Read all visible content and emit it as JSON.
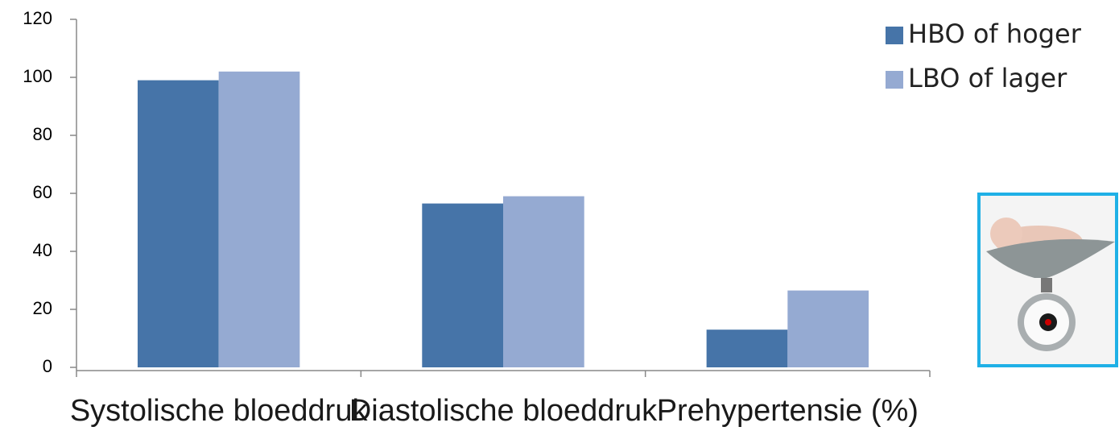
{
  "chart_data": {
    "type": "bar",
    "categories": [
      "Systolische bloeddruk",
      "Diastolische bloeddruk",
      "Prehypertensie (%)"
    ],
    "series": [
      {
        "name": "HBO of hoger",
        "color": "#4674a8",
        "values": [
          99,
          56.5,
          13
        ]
      },
      {
        "name": "LBO of lager",
        "color": "#95aad2",
        "values": [
          102,
          59,
          26.5
        ]
      }
    ],
    "ylim": [
      0,
      120
    ],
    "yticks": [
      0,
      20,
      40,
      60,
      80,
      100,
      120
    ],
    "grid": false,
    "legend": "right"
  }
}
